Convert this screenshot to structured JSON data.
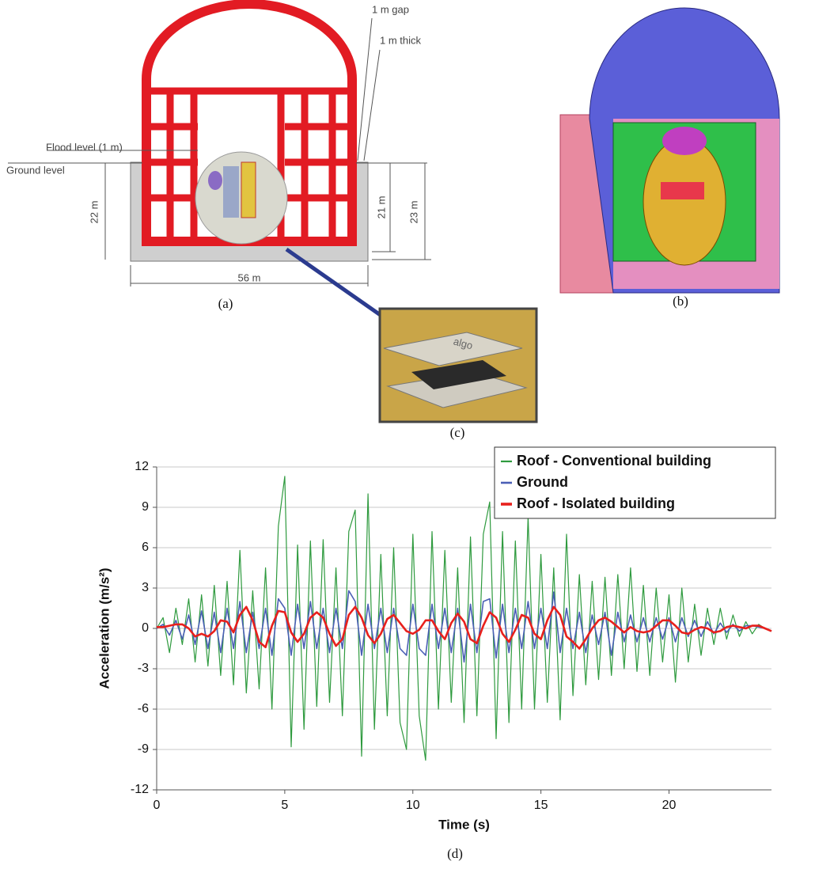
{
  "panel_a": {
    "label": "(a)",
    "gap": "1 m gap",
    "thick": "1 m thick",
    "flood": "Flood level (1 m)",
    "ground": "Ground level",
    "depth_left": "22 m",
    "depth_mid": "21 m",
    "depth_right": "23 m",
    "width": "56 m"
  },
  "panel_b": {
    "label": "(b)"
  },
  "panel_c": {
    "label": "(c)",
    "photo_text": "algo"
  },
  "panel_d": {
    "label": "(d)"
  },
  "chart_data": {
    "type": "line",
    "x_label": "Time (s)",
    "y_label": "Acceleration (m/s²)",
    "xlim": [
      0,
      24
    ],
    "xticks": [
      0,
      5,
      10,
      15,
      20
    ],
    "ylim": [
      -12,
      12
    ],
    "yticks": [
      -12,
      -9,
      -6,
      -3,
      0,
      3,
      6,
      9,
      12
    ],
    "grid": true,
    "legend": "upper right",
    "x": [
      0,
      0.25,
      0.5,
      0.75,
      1,
      1.25,
      1.5,
      1.75,
      2,
      2.25,
      2.5,
      2.75,
      3,
      3.25,
      3.5,
      3.75,
      4,
      4.25,
      4.5,
      4.75,
      5,
      5.25,
      5.5,
      5.75,
      6,
      6.25,
      6.5,
      6.75,
      7,
      7.25,
      7.5,
      7.75,
      8,
      8.25,
      8.5,
      8.75,
      9,
      9.25,
      9.5,
      9.75,
      10,
      10.25,
      10.5,
      10.75,
      11,
      11.25,
      11.5,
      11.75,
      12,
      12.25,
      12.5,
      12.75,
      13,
      13.25,
      13.5,
      13.75,
      14,
      14.25,
      14.5,
      14.75,
      15,
      15.25,
      15.5,
      15.75,
      16,
      16.25,
      16.5,
      16.75,
      17,
      17.25,
      17.5,
      17.75,
      18,
      18.25,
      18.5,
      18.75,
      19,
      19.25,
      19.5,
      19.75,
      20,
      20.25,
      20.5,
      20.75,
      21,
      21.25,
      21.5,
      21.75,
      22,
      22.25,
      22.5,
      22.75,
      23,
      23.25,
      23.5,
      23.75,
      24
    ],
    "series": [
      {
        "name": "Roof - Conventional building",
        "color": "#2e9a3e",
        "width": 1.2,
        "values": [
          0,
          0.8,
          -1.8,
          1.5,
          -1.2,
          2.2,
          -2.5,
          2.5,
          -2.8,
          3.2,
          -3.5,
          3.5,
          -4.2,
          5.8,
          -4.8,
          2.8,
          -4.5,
          4.5,
          -6,
          7.6,
          11.3,
          -8.8,
          6.2,
          -7.5,
          6.5,
          -5.8,
          6.6,
          -5.5,
          4.5,
          -6.5,
          7.2,
          8.8,
          -9.5,
          10,
          -7.5,
          5.5,
          -6.5,
          6,
          -7,
          -9,
          7,
          -6.5,
          -9.8,
          7.2,
          -6,
          5.8,
          -5.5,
          4.5,
          -7,
          6.8,
          -6.5,
          7,
          9.4,
          -8.2,
          7.2,
          -7,
          6.5,
          -6,
          8.3,
          -6,
          5.5,
          -5.5,
          4.5,
          -6.8,
          7,
          -5,
          4,
          -4.2,
          3.5,
          -3.8,
          3.8,
          -3.5,
          4,
          -3,
          4.5,
          -3.2,
          3.2,
          -3.5,
          3,
          -2.5,
          2.5,
          -4,
          3,
          -2.5,
          1.8,
          -2,
          1.5,
          -1.2,
          1.5,
          -0.8,
          1,
          -0.6,
          0.5,
          -0.4,
          0.3,
          0,
          -0.2
        ]
      },
      {
        "name": "Ground",
        "color": "#4a5fb5",
        "width": 1.6,
        "values": [
          0,
          0.3,
          -0.5,
          0.6,
          -0.8,
          1,
          -1.2,
          1.3,
          -1.5,
          1.2,
          -1.8,
          1.5,
          -1.5,
          2,
          -1.8,
          1.2,
          -1.5,
          1.5,
          -2,
          2.2,
          1.5,
          -2,
          1.8,
          -1.5,
          2,
          -1.5,
          1.5,
          -1.8,
          1.5,
          -1.5,
          2.8,
          2,
          -2,
          1.8,
          -1.5,
          1.5,
          -1.8,
          1.5,
          -1.5,
          -2,
          1.8,
          -1.5,
          -2,
          1.8,
          -1.5,
          1.5,
          -1.8,
          1.5,
          -2.5,
          1.8,
          -1.8,
          2,
          2.2,
          -2.2,
          1.8,
          -1.8,
          1.5,
          -1.5,
          2,
          -1.5,
          1.5,
          -1.5,
          2.7,
          -1.8,
          1.5,
          -1.5,
          1.2,
          -1.8,
          1,
          -1.2,
          1.2,
          -2,
          1.2,
          -1,
          1,
          -1,
          0.8,
          -1,
          0.8,
          -0.8,
          0.8,
          -1,
          0.8,
          -0.6,
          0.6,
          -0.6,
          0.5,
          -0.4,
          0.4,
          -0.3,
          0.3,
          -0.2,
          0.2,
          0.2,
          0.1,
          0,
          -0.2
        ]
      },
      {
        "name": "Roof - Isolated building",
        "color": "#e8201c",
        "width": 2.6,
        "values": [
          0.1,
          0.1,
          0.2,
          0.3,
          0.3,
          0,
          -0.6,
          -0.4,
          -0.6,
          -0.2,
          0.6,
          0.5,
          -0.3,
          1,
          1.6,
          0.6,
          -1,
          -1.4,
          0.2,
          1.3,
          1.2,
          -0.3,
          -1,
          -0.4,
          0.8,
          1.2,
          0.8,
          -0.4,
          -1.3,
          -0.8,
          1,
          1.6,
          0.8,
          -0.5,
          -1.1,
          -0.4,
          0.7,
          1,
          0.4,
          -0.2,
          -0.4,
          -0.1,
          0.6,
          0.6,
          -0.2,
          -0.8,
          0.4,
          1.1,
          0.5,
          -0.8,
          -1.1,
          0.2,
          1.2,
          0.8,
          -0.4,
          -1,
          -0.1,
          1,
          0.8,
          -0.4,
          -0.8,
          0.6,
          1.6,
          1,
          -0.6,
          -1,
          -1.5,
          -0.8,
          0,
          0.6,
          0.8,
          0.5,
          0.1,
          -0.3,
          0.1,
          -0.2,
          -0.3,
          -0.2,
          0.2,
          0.6,
          0.6,
          0.2,
          -0.3,
          -0.4,
          -0.1,
          0.1,
          0,
          -0.3,
          -0.2,
          0.1,
          0.2,
          0.1,
          0,
          0.2,
          0.2,
          0,
          -0.2
        ]
      }
    ]
  }
}
